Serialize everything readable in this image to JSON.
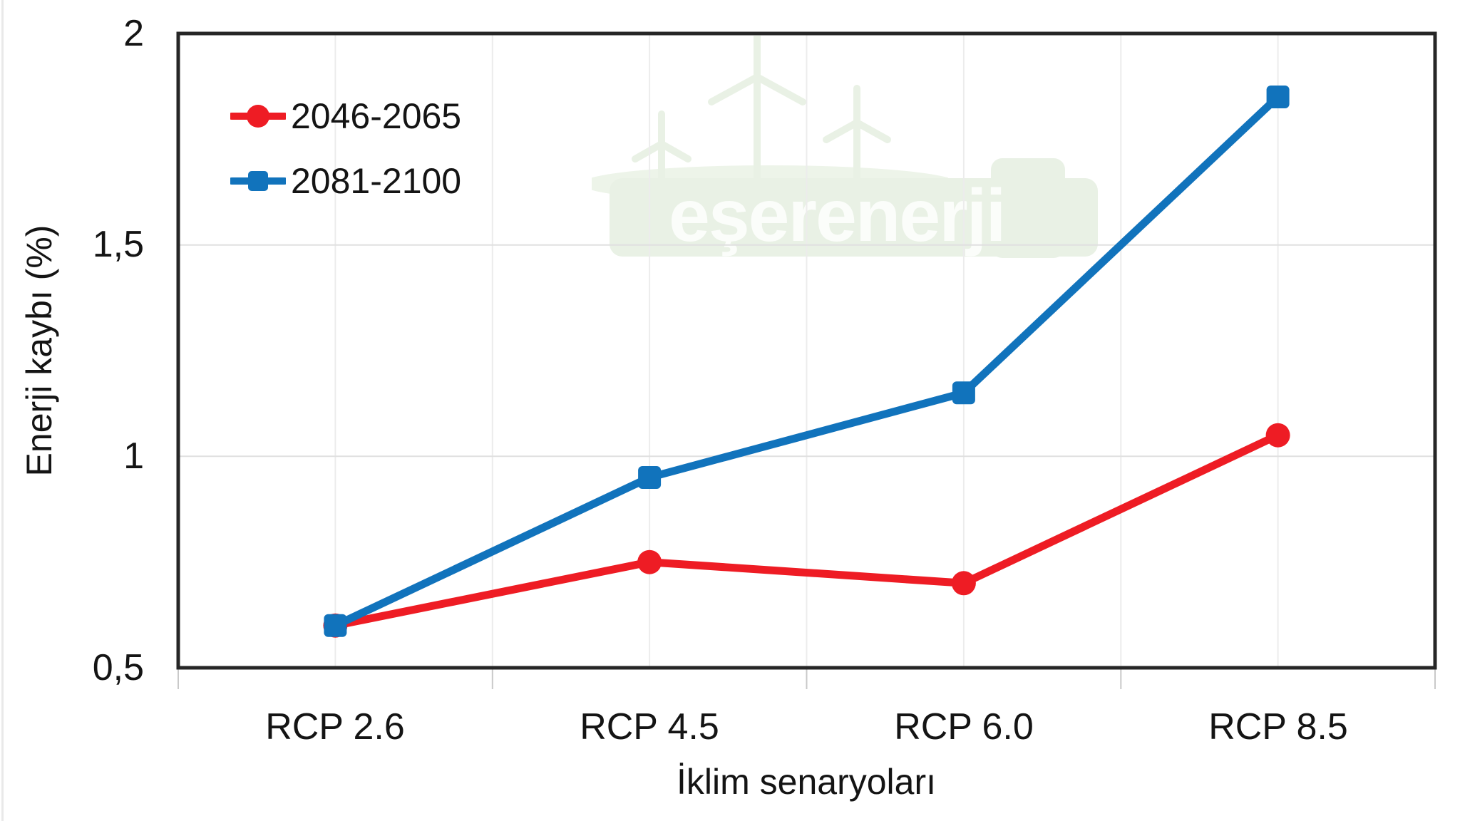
{
  "watermark": {
    "text": "eşerenerji",
    "color": "#e9f1e5"
  },
  "legend": {
    "items": [
      {
        "label": "2046-2065"
      },
      {
        "label": "2081-2100"
      }
    ]
  },
  "y_axis": {
    "title": "Enerji kaybı (%)",
    "ticks": [
      "2",
      "1,5",
      "1",
      "0,5"
    ]
  },
  "x_axis": {
    "title": "İklim senaryoları",
    "categories": [
      "RCP 2.6",
      "RCP 4.5",
      "RCP 6.0",
      "RCP 8.5"
    ]
  },
  "chart_data": {
    "type": "line",
    "categories": [
      "RCP 2.6",
      "RCP 4.5",
      "RCP 6.0",
      "RCP 8.5"
    ],
    "series": [
      {
        "name": "2046-2065",
        "marker": "circle",
        "color": "#ee1c24",
        "values": [
          0.6,
          0.75,
          0.7,
          1.05
        ]
      },
      {
        "name": "2081-2100",
        "marker": "square",
        "color": "#1173bc",
        "values": [
          0.6,
          0.95,
          1.15,
          1.85
        ]
      }
    ],
    "title": "",
    "xlabel": "İklim senaryoları",
    "ylabel": "Enerji kaybı (%)",
    "ylim": [
      0.5,
      2.0
    ],
    "y_tick_step": 0.5,
    "y_tick_labels_bottom_to_top": [
      "0,5",
      "1",
      "1,5",
      "2"
    ],
    "grid": true,
    "gridline_color_h": "#e0e0e0",
    "gridline_color_v": "#ececec",
    "frame_color": "#262626",
    "legend_position": "top-left"
  }
}
